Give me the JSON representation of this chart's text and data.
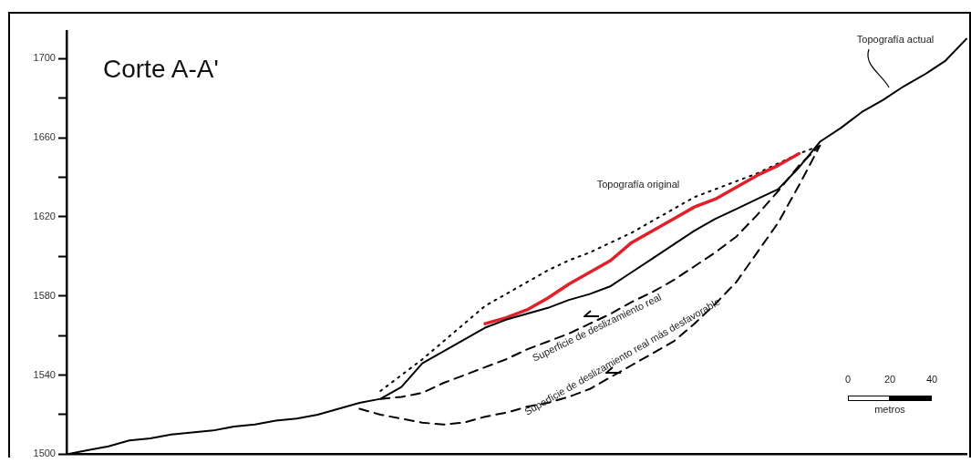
{
  "chart_data": {
    "type": "line",
    "title": "Corte A-A'",
    "ylim": [
      1500,
      1714
    ],
    "categories": [
      null,
      null,
      null,
      null,
      null,
      null,
      null,
      null,
      null,
      null,
      null,
      null,
      null,
      null,
      null,
      null,
      null,
      null,
      null,
      null,
      null,
      null,
      null,
      null,
      null,
      null,
      null,
      null,
      null,
      null,
      null,
      null,
      null,
      null,
      null,
      null,
      null,
      null,
      null,
      null,
      null,
      null,
      null,
      null
    ],
    "yticks": [
      1500,
      {
        "value": 1520,
        "label": null
      },
      1540,
      {
        "value": 1560,
        "label": null
      },
      1580,
      {
        "value": 1600,
        "label": null
      },
      1620,
      {
        "value": 1640,
        "label": null
      },
      1660,
      {
        "value": 1680,
        "label": null
      },
      1700
    ],
    "tick_labels": "y",
    "grid": false,
    "legend": false,
    "marker": "none",
    "annotations": [
      "0",
      "20",
      "40",
      "metros"
    ],
    "series": [
      {
        "name": "Topografía actual",
        "color": "#000000",
        "line_style": "solid",
        "values": [
          1500,
          1502,
          1504,
          1507,
          1508,
          1510,
          1511,
          1512,
          1514,
          1515,
          1517,
          1518,
          1520,
          1523,
          1526,
          1528,
          1534,
          1546,
          1552,
          1558,
          1564,
          1568,
          1571,
          1574,
          1578,
          1581,
          1585,
          1592,
          1599,
          1606,
          1613,
          1619,
          1624,
          1629,
          1634,
          1645,
          1658,
          1665,
          1673,
          1679,
          1686,
          1692,
          1699,
          1710
        ]
      },
      {
        "color": "#e0202a",
        "line_style": "solid",
        "values": [
          null,
          null,
          null,
          null,
          null,
          null,
          null,
          null,
          null,
          null,
          null,
          null,
          null,
          null,
          null,
          null,
          null,
          null,
          null,
          null,
          1566,
          1569,
          1573,
          1579,
          1586,
          1592,
          1598,
          1607,
          1613,
          1619,
          1625,
          1629,
          1635,
          1641,
          1646,
          1652,
          null,
          null,
          null,
          null,
          null,
          null,
          null,
          null
        ]
      },
      {
        "name": "Topografía original",
        "color": "#000000",
        "line_style": "dotted",
        "values": [
          null,
          null,
          null,
          null,
          null,
          null,
          null,
          null,
          null,
          null,
          null,
          null,
          null,
          null,
          null,
          1532,
          1540,
          1548,
          1557,
          1566,
          1575,
          1581,
          1587,
          1593,
          1598,
          1602,
          1607,
          1612,
          1618,
          1624,
          1630,
          1634,
          1638,
          1642,
          1647,
          1652,
          1656,
          null,
          null,
          null,
          null,
          null,
          null,
          null
        ]
      },
      {
        "name": "Superficie de deslizamiento real",
        "color": "#000000",
        "line_style": "dashed",
        "values": [
          null,
          null,
          null,
          null,
          null,
          null,
          null,
          null,
          null,
          null,
          null,
          null,
          null,
          null,
          null,
          1528,
          1529,
          1531,
          1536,
          1540,
          1544,
          1548,
          1553,
          1557,
          1561,
          1566,
          1571,
          1577,
          1582,
          1588,
          1595,
          1602,
          1610,
          1621,
          1633,
          1646,
          1656,
          null,
          null,
          null,
          null,
          null,
          null,
          null
        ]
      },
      {
        "name": "Superficie de deslizamiento real más desfavorable",
        "color": "#000000",
        "line_style": "dashed",
        "values": [
          null,
          null,
          null,
          null,
          null,
          null,
          null,
          null,
          null,
          null,
          null,
          null,
          null,
          null,
          1523,
          1520,
          1518,
          1516,
          1515,
          1516,
          1519,
          1521,
          1524,
          1526,
          1529,
          1533,
          1539,
          1545,
          1551,
          1557,
          1566,
          1576,
          1587,
          1602,
          1617,
          1636,
          1656,
          null,
          null,
          null,
          null,
          null,
          null,
          null
        ]
      }
    ]
  }
}
